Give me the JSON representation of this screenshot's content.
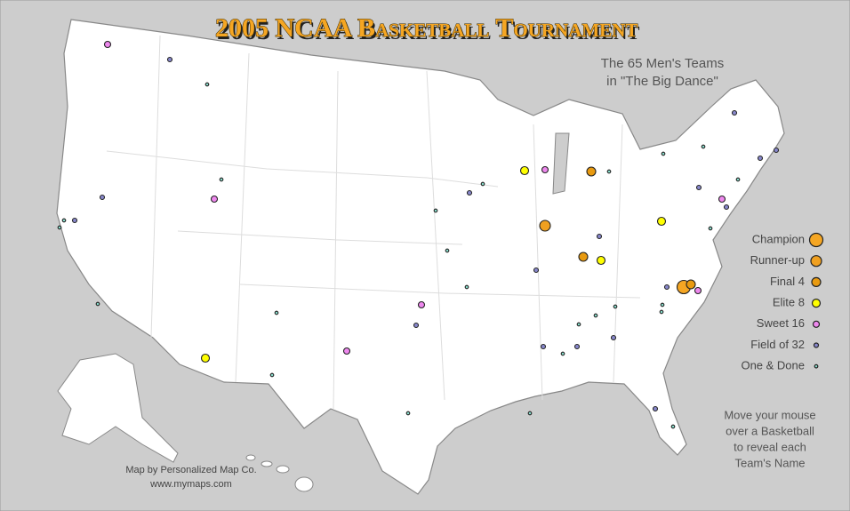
{
  "title": "2005 NCAA Basketball Tournament",
  "subtitle": [
    "The 65 Men's Teams",
    "in \"The Big Dance\""
  ],
  "legend": [
    "Champion",
    "Runner-up",
    "Final 4",
    "Elite 8",
    "Sweet 16",
    "Field of 32",
    "One & Done"
  ],
  "instructions": [
    "Move your mouse",
    "over a Basketball",
    "to reveal each",
    "Team's Name"
  ],
  "credits": [
    "Map by Personalized Map Co.",
    "www.mymaps.com"
  ]
}
